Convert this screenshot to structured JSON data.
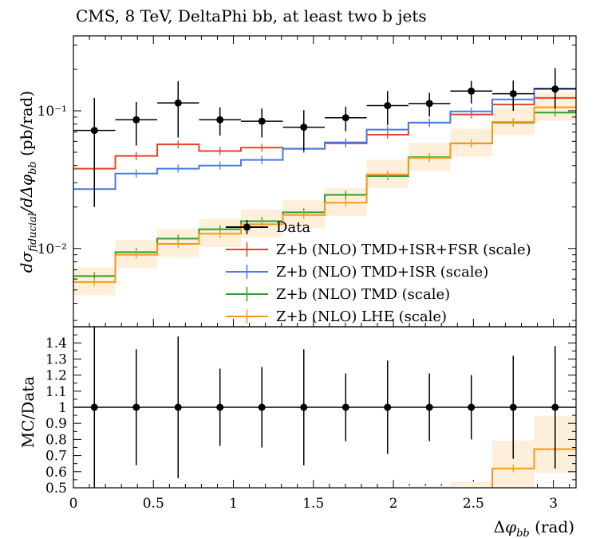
{
  "chart_data": {
    "type": "line",
    "title": "CMS, 8 TeV, DeltaPhi bb, at least two b jets",
    "xlabel": "Δφ_bb (rad)",
    "bins": [
      0,
      0.262,
      0.524,
      0.785,
      1.047,
      1.309,
      1.571,
      1.833,
      2.094,
      2.356,
      2.618,
      2.88,
      3.1416
    ],
    "top": {
      "ylabel": "dσ_fiducial/dΔφ_bb (pb/rad)",
      "yscale": "log",
      "ylim": [
        0.0027,
        0.35
      ],
      "ytick_labels": [
        "10⁻²",
        "10⁻¹"
      ],
      "data": {
        "name": "Data",
        "values": [
          0.072,
          0.086,
          0.114,
          0.086,
          0.084,
          0.076,
          0.089,
          0.109,
          0.113,
          0.139,
          0.133,
          0.144
        ],
        "err_low": [
          0.052,
          0.03,
          0.05,
          0.02,
          0.02,
          0.025,
          0.018,
          0.03,
          0.022,
          0.026,
          0.033,
          0.04
        ],
        "err_high": [
          0.052,
          0.03,
          0.05,
          0.02,
          0.02,
          0.025,
          0.018,
          0.03,
          0.022,
          0.026,
          0.033,
          0.06
        ]
      },
      "series": [
        {
          "name": "Z+b (NLO) TMD+ISR+FSR (scale)",
          "color": "#e8412b",
          "values": [
            0.038,
            0.047,
            0.057,
            0.051,
            0.054,
            0.053,
            0.058,
            0.067,
            0.082,
            0.094,
            0.111,
            0.124
          ]
        },
        {
          "name": "Z+b (NLO) TMD+ISR (scale)",
          "color": "#4a78e8",
          "values": [
            0.027,
            0.035,
            0.038,
            0.04,
            0.044,
            0.053,
            0.059,
            0.073,
            0.082,
            0.099,
            0.121,
            0.145
          ]
        },
        {
          "name": "Z+b (NLO) TMD (scale)",
          "color": "#2e9e2e",
          "values": [
            0.0063,
            0.0094,
            0.0118,
            0.0138,
            0.0158,
            0.0183,
            0.0245,
            0.0335,
            0.046,
            0.058,
            0.082,
            0.097
          ]
        },
        {
          "name": "Z+b (NLO) LHE (scale)",
          "color": "#f59a18",
          "band": "#fdefd9",
          "values": [
            0.0057,
            0.009,
            0.0108,
            0.0128,
            0.015,
            0.0175,
            0.0215,
            0.0345,
            0.0455,
            0.058,
            0.083,
            0.106
          ]
        }
      ]
    },
    "ratio": {
      "ylabel": "MC/Data",
      "ylim": [
        0.5,
        1.5
      ],
      "ytick_labels": [
        "0.5",
        "0.6",
        "0.7",
        "0.8",
        "0.9",
        "1",
        "1.1",
        "1.2",
        "1.3",
        "1.4"
      ],
      "data_err": [
        0.72,
        0.36,
        0.44,
        0.24,
        0.25,
        0.36,
        0.21,
        0.29,
        0.21,
        0.2,
        0.32,
        0.38
      ],
      "lhe_values": [
        null,
        null,
        null,
        null,
        null,
        null,
        null,
        null,
        0.4,
        0.42,
        0.62,
        0.74
      ]
    },
    "xtick_labels": [
      "0",
      "0.5",
      "1",
      "1.5",
      "2",
      "2.5",
      "3"
    ],
    "legend_position": "lower-right"
  }
}
